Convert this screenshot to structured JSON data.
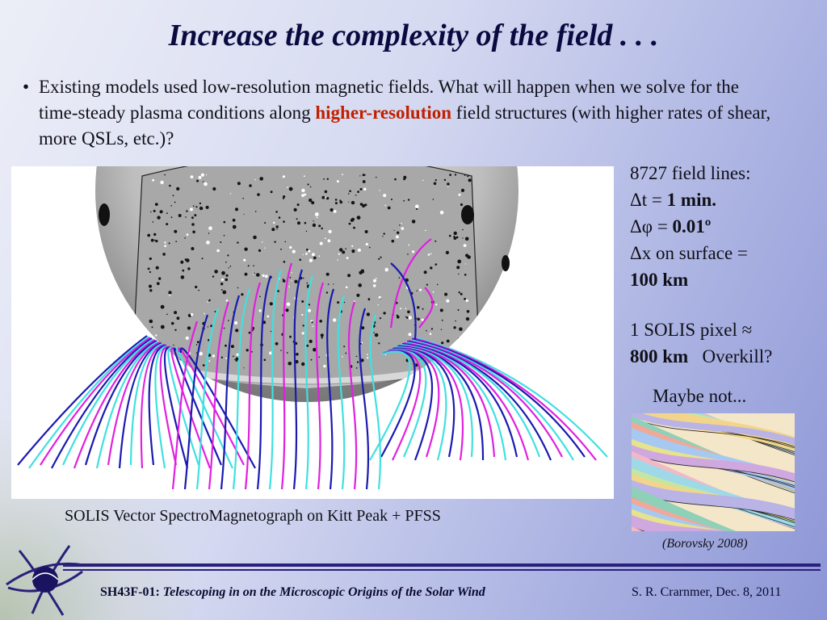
{
  "slide": {
    "title": "Increase the complexity of the field . . .",
    "bullet": {
      "marker": "•",
      "text_part1": "Existing models used low-resolution magnetic fields.  What will happen when we solve for the time-steady plasma conditions along ",
      "highlight": "higher-resolution",
      "text_part2": " field structures (with higher rates of shear, more QSLs, etc.)?"
    },
    "figure_caption": "SOLIS Vector SpectroMagnetograph on Kitt Peak  +  PFSS",
    "stats": {
      "field_lines": "8727 field lines:",
      "dt_label": "Δt = ",
      "dt_value": "1 min.",
      "dphi_label": "Δφ = ",
      "dphi_value": "0.01º",
      "dx_label": "Δx on surface =",
      "dx_value": "100 km"
    },
    "solis_pixel": {
      "line1": "1 SOLIS pixel ≈",
      "value": "800 km",
      "comment": "Overkill?"
    },
    "maybe_not": "Maybe not...",
    "borovsky_caption": "(Borovsky 2008)",
    "footer": {
      "code": "SH43F-01:",
      "talk_title": "Telescoping in on the Microscopic Origins of the Solar Wind",
      "author_date": "S. R. Crarnmer, Dec. 8, 2011"
    },
    "colors": {
      "title": "#0a0a40",
      "highlight": "#c02000",
      "footer_rule": "#2a1f7a",
      "field_blue": "#1a1ab0",
      "field_cyan": "#40e0e0",
      "field_magenta": "#e020e0"
    }
  }
}
